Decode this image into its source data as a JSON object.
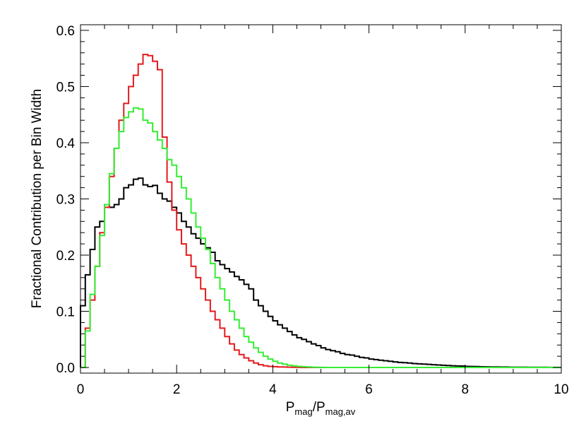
{
  "chart_data": {
    "type": "step",
    "xlabel": {
      "main": "P",
      "sub1": "mag",
      "slash": "/P",
      "sub2": "mag,av"
    },
    "ylabel": "Fractional Contribution per Bin Width",
    "xlim": [
      0,
      10
    ],
    "ylim": [
      -0.01,
      0.61
    ],
    "x_ticks": [
      0,
      2,
      4,
      6,
      8,
      10
    ],
    "x_tick_labels": [
      "0",
      "2",
      "4",
      "6",
      "8",
      "10"
    ],
    "y_ticks": [
      0.0,
      0.1,
      0.2,
      0.3,
      0.4,
      0.5,
      0.6
    ],
    "y_tick_labels": [
      "0.0",
      "0.1",
      "0.2",
      "0.3",
      "0.4",
      "0.5",
      "0.6"
    ],
    "grid": false,
    "legend": "none",
    "bin_width": 0.1,
    "series": [
      {
        "color": "#000000",
        "bin_start": 0.0,
        "values": [
          0.11,
          0.165,
          0.21,
          0.25,
          0.26,
          0.29,
          0.285,
          0.29,
          0.3,
          0.32,
          0.325,
          0.335,
          0.337,
          0.325,
          0.322,
          0.324,
          0.31,
          0.3,
          0.296,
          0.285,
          0.275,
          0.26,
          0.25,
          0.238,
          0.23,
          0.22,
          0.213,
          0.205,
          0.19,
          0.183,
          0.176,
          0.17,
          0.162,
          0.156,
          0.148,
          0.14,
          0.12,
          0.11,
          0.1,
          0.091,
          0.083,
          0.076,
          0.07,
          0.064,
          0.058,
          0.053,
          0.05,
          0.046,
          0.042,
          0.039,
          0.035,
          0.032,
          0.03,
          0.028,
          0.025,
          0.023,
          0.022,
          0.02,
          0.018,
          0.017,
          0.015,
          0.014,
          0.013,
          0.012,
          0.011,
          0.01,
          0.009,
          0.0085,
          0.008,
          0.007,
          0.0065,
          0.006,
          0.0055,
          0.005,
          0.0045,
          0.004,
          0.0035,
          0.003,
          0.0028,
          0.0025,
          0.002,
          0.0018,
          0.0016,
          0.0014,
          0.0012,
          0.001,
          0.001,
          0.0008,
          0.0008,
          0.0006,
          0.0006,
          0.0005,
          0.0005,
          0.0004,
          0.0004,
          0.0003,
          0.0003,
          0.0002,
          0.0002,
          0.0002
        ]
      },
      {
        "color": "#e41a1c",
        "bin_start": 0.0,
        "values": [
          0.0,
          0.07,
          0.12,
          0.18,
          0.24,
          0.285,
          0.34,
          0.39,
          0.44,
          0.47,
          0.5,
          0.52,
          0.54,
          0.557,
          0.555,
          0.545,
          0.53,
          0.41,
          0.33,
          0.28,
          0.245,
          0.22,
          0.2,
          0.18,
          0.16,
          0.14,
          0.12,
          0.1,
          0.085,
          0.07,
          0.055,
          0.042,
          0.031,
          0.023,
          0.017,
          0.012,
          0.008,
          0.005,
          0.003,
          0.002,
          0.0015,
          0.001,
          0.0008,
          0.0005,
          0.0003,
          0.0002,
          0.0001,
          0.0,
          0.0,
          0.0,
          0.0,
          0.0,
          0.0,
          0.0,
          0.0,
          0.0,
          0.0,
          0.0,
          0.0,
          0.0,
          0.0,
          0.0,
          0.0,
          0.0,
          0.0,
          0.0,
          0.0,
          0.0,
          0.0,
          0.0,
          0.0,
          0.0,
          0.0,
          0.0,
          0.0,
          0.0,
          0.0,
          0.0,
          0.0,
          0.0,
          0.0,
          0.0,
          0.0,
          0.0,
          0.0,
          0.0,
          0.0,
          0.0,
          0.0,
          0.0,
          0.0,
          0.0,
          0.0,
          0.0,
          0.0,
          0.0,
          0.0,
          0.0,
          0.0,
          0.0
        ]
      },
      {
        "color": "#33ee33",
        "bin_start": 0.0,
        "values": [
          0.0,
          0.065,
          0.13,
          0.18,
          0.235,
          0.29,
          0.345,
          0.39,
          0.42,
          0.445,
          0.455,
          0.462,
          0.46,
          0.44,
          0.435,
          0.42,
          0.405,
          0.39,
          0.37,
          0.36,
          0.34,
          0.32,
          0.3,
          0.275,
          0.25,
          0.23,
          0.21,
          0.185,
          0.16,
          0.14,
          0.12,
          0.1,
          0.085,
          0.07,
          0.055,
          0.045,
          0.035,
          0.027,
          0.02,
          0.015,
          0.011,
          0.008,
          0.006,
          0.004,
          0.003,
          0.002,
          0.0015,
          0.001,
          0.0005,
          0.0003,
          0.0002,
          0.0,
          0.0,
          0.0,
          0.0,
          0.0,
          0.0,
          0.0,
          0.0,
          0.0,
          0.0,
          0.0,
          0.0,
          0.0,
          0.0,
          0.0,
          0.0,
          0.0,
          0.0,
          0.0,
          0.0,
          0.0,
          0.0,
          0.0,
          0.0,
          0.0,
          0.0,
          0.0,
          0.0,
          0.0,
          0.0,
          0.0,
          0.0,
          0.0,
          0.0,
          0.0,
          0.0,
          0.0,
          0.0,
          0.0,
          0.0,
          0.0,
          0.0,
          0.0,
          0.0,
          0.0,
          0.0,
          0.0,
          0.0,
          0.0
        ]
      }
    ]
  }
}
